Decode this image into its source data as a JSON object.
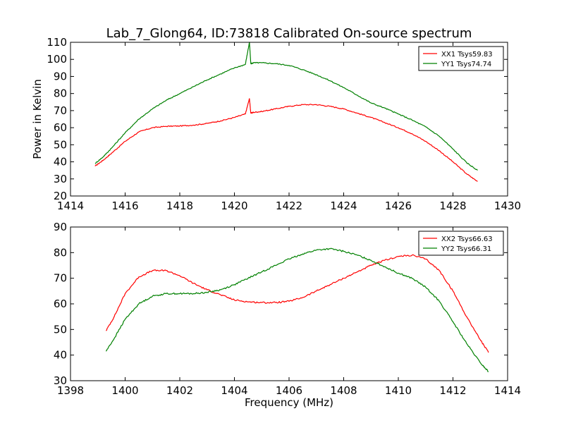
{
  "figure": {
    "title": "Lab_7_Glong64, ID:73818 Calibrated On-source spectrum",
    "ylabel": "Power in Kelvin",
    "xlabel": "Frequency (MHz)"
  },
  "chart_data": [
    {
      "type": "line",
      "title": "Lab_7_Glong64, ID:73818 Calibrated On-source spectrum",
      "xlabel": "",
      "ylabel": "Power in Kelvin",
      "xlim": [
        1414,
        1430
      ],
      "ylim": [
        20,
        110
      ],
      "xticks": [
        1414,
        1416,
        1418,
        1420,
        1422,
        1424,
        1426,
        1428,
        1430
      ],
      "yticks": [
        20,
        30,
        40,
        50,
        60,
        70,
        80,
        90,
        100,
        110
      ],
      "legend": "top-right",
      "grid": false,
      "series": [
        {
          "name": "XX1 Tsys59.83",
          "color": "#ff0000",
          "x": [
            1414.9,
            1415.2,
            1415.5,
            1416.0,
            1416.5,
            1417.0,
            1417.5,
            1418.0,
            1418.5,
            1419.0,
            1419.5,
            1420.0,
            1420.4,
            1420.55,
            1420.6,
            1420.7,
            1421.0,
            1421.5,
            1422.0,
            1422.5,
            1423.0,
            1423.5,
            1424.0,
            1424.5,
            1425.0,
            1425.5,
            1426.0,
            1426.5,
            1427.0,
            1427.5,
            1428.0,
            1428.5,
            1428.9
          ],
          "y": [
            37.5,
            41,
            45,
            52,
            57.5,
            60,
            60.8,
            61,
            61.5,
            62.5,
            64,
            66,
            68,
            77,
            68.5,
            69,
            69.5,
            71,
            72.5,
            73.5,
            73.5,
            72.5,
            71,
            68.5,
            66,
            63,
            60,
            56.5,
            52,
            46.5,
            40,
            33,
            28.5
          ]
        },
        {
          "name": "YY1 Tsys74.74",
          "color": "#008000",
          "x": [
            1414.9,
            1415.2,
            1415.5,
            1416.0,
            1416.5,
            1417.0,
            1417.5,
            1418.0,
            1418.5,
            1419.0,
            1419.5,
            1420.0,
            1420.4,
            1420.55,
            1420.6,
            1420.7,
            1421.0,
            1421.5,
            1422.0,
            1422.5,
            1423.0,
            1423.5,
            1424.0,
            1424.5,
            1425.0,
            1425.5,
            1426.0,
            1426.5,
            1427.0,
            1427.5,
            1428.0,
            1428.5,
            1428.9
          ],
          "y": [
            39,
            43,
            48,
            57,
            65,
            71,
            76,
            80,
            84,
            88,
            91.5,
            95,
            97,
            110,
            97.5,
            98,
            98,
            97.5,
            96.5,
            94,
            91,
            87.5,
            83.5,
            79,
            74.5,
            71.5,
            68,
            64.5,
            60.5,
            55,
            47.5,
            39.5,
            35
          ]
        }
      ]
    },
    {
      "type": "line",
      "title": "",
      "xlabel": "Frequency (MHz)",
      "ylabel": "",
      "xlim": [
        1398,
        1414
      ],
      "ylim": [
        30,
        90
      ],
      "xticks": [
        1398,
        1400,
        1402,
        1404,
        1406,
        1408,
        1410,
        1412,
        1414
      ],
      "yticks": [
        30,
        40,
        50,
        60,
        70,
        80,
        90
      ],
      "legend": "top-right",
      "grid": false,
      "series": [
        {
          "name": "XX2 Tsys66.63",
          "color": "#ff0000",
          "x": [
            1399.3,
            1399.6,
            1400.0,
            1400.5,
            1401.0,
            1401.5,
            1402.0,
            1402.5,
            1403.0,
            1403.5,
            1404.0,
            1404.5,
            1405.0,
            1405.5,
            1406.0,
            1406.5,
            1407.0,
            1407.5,
            1408.0,
            1408.5,
            1409.0,
            1409.5,
            1410.0,
            1410.5,
            1411.0,
            1411.5,
            1412.0,
            1412.5,
            1413.0,
            1413.3
          ],
          "y": [
            49.5,
            55,
            64,
            70.5,
            73,
            73,
            71,
            68,
            65.5,
            63.5,
            61.5,
            60.8,
            60.5,
            60.5,
            61,
            62.5,
            65,
            67.5,
            70,
            72.5,
            75,
            77,
            78.5,
            79,
            77.5,
            73,
            65,
            55,
            46,
            41
          ]
        },
        {
          "name": "YY2 Tsys66.31",
          "color": "#008000",
          "x": [
            1399.3,
            1399.6,
            1400.0,
            1400.5,
            1401.0,
            1401.5,
            1402.0,
            1402.5,
            1403.0,
            1403.5,
            1404.0,
            1404.5,
            1405.0,
            1405.5,
            1406.0,
            1406.5,
            1407.0,
            1407.5,
            1408.0,
            1408.5,
            1409.0,
            1409.5,
            1410.0,
            1410.5,
            1411.0,
            1411.5,
            1412.0,
            1412.5,
            1413.0,
            1413.3
          ],
          "y": [
            41.5,
            46.5,
            54,
            60,
            63,
            64,
            64,
            64,
            64.5,
            65.5,
            67.5,
            70,
            72.5,
            75,
            77.5,
            79.5,
            81,
            81.5,
            80.5,
            79,
            77,
            74.5,
            72,
            70,
            66.5,
            61,
            53,
            44.5,
            37,
            33.5
          ]
        }
      ]
    }
  ]
}
